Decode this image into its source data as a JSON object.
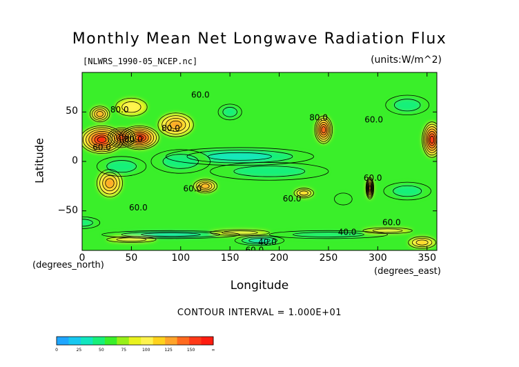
{
  "chart_data": {
    "type": "heatmap",
    "title": "Monthly Mean Net Longwave Radiation Flux",
    "subtitle": "[NLWRS_1990-05_NCEP.nc]",
    "units": "(units:W/m^2)",
    "xlabel": "Longitude",
    "ylabel": "Latitude",
    "xunits": "(degrees_east)",
    "yunits": "(degrees_north)",
    "xlim": [
      0,
      360
    ],
    "ylim": [
      -90,
      90
    ],
    "xticks": [
      0,
      50,
      100,
      150,
      200,
      250,
      300,
      350
    ],
    "yticks": [
      50,
      0,
      -50
    ],
    "xtick_labels": [
      "0",
      "50",
      "100",
      "150",
      "200",
      "250",
      "300",
      "350"
    ],
    "ytick_labels": [
      "50",
      "0",
      "−50"
    ],
    "contour_interval": "CONTOUR INTERVAL = 1.000E+01",
    "contour_labels": [
      {
        "lon": 38,
        "lat": 52,
        "text": "80.0"
      },
      {
        "lon": 120,
        "lat": 67,
        "text": "60.0"
      },
      {
        "lon": 90,
        "lat": 33,
        "text": "80.0"
      },
      {
        "lon": 20,
        "lat": 14,
        "text": "60.0"
      },
      {
        "lon": 52,
        "lat": 22,
        "text": "80.0"
      },
      {
        "lon": 240,
        "lat": 44,
        "text": "80.0"
      },
      {
        "lon": 296,
        "lat": 42,
        "text": "60.0"
      },
      {
        "lon": 295,
        "lat": -17,
        "text": "60.0"
      },
      {
        "lon": 112,
        "lat": -28,
        "text": "60.0"
      },
      {
        "lon": 213,
        "lat": -38,
        "text": "60.0"
      },
      {
        "lon": 57,
        "lat": -47,
        "text": "60.0"
      },
      {
        "lon": 269,
        "lat": -72,
        "text": "40.0"
      },
      {
        "lon": 314,
        "lat": -62,
        "text": "60.0"
      },
      {
        "lon": 188,
        "lat": -82,
        "text": "40.0"
      },
      {
        "lon": 175,
        "lat": -90,
        "text": "60.0"
      }
    ],
    "field_features": [
      {
        "lon": 20,
        "lat": 22,
        "w": 22,
        "h": 14,
        "value": 70
      },
      {
        "lon": 58,
        "lat": 24,
        "w": 20,
        "h": 12,
        "value": 72
      },
      {
        "lon": 40,
        "lat": 24,
        "w": 14,
        "h": 10,
        "value": 55
      },
      {
        "lon": 95,
        "lat": 37,
        "w": 18,
        "h": 12,
        "value": 38
      },
      {
        "lon": 18,
        "lat": 48,
        "w": 10,
        "h": 8,
        "value": 40
      },
      {
        "lon": 50,
        "lat": 55,
        "w": 16,
        "h": 9,
        "value": 22
      },
      {
        "lon": 245,
        "lat": 32,
        "w": 9,
        "h": 14,
        "value": 55
      },
      {
        "lon": 355,
        "lat": 22,
        "w": 10,
        "h": 18,
        "value": 70
      },
      {
        "lon": 28,
        "lat": -22,
        "w": 13,
        "h": 14,
        "value": 35
      },
      {
        "lon": 125,
        "lat": -25,
        "w": 12,
        "h": 7,
        "value": 40
      },
      {
        "lon": 225,
        "lat": -32,
        "w": 10,
        "h": 5,
        "value": 30
      },
      {
        "lon": 292,
        "lat": -27,
        "w": 4,
        "h": 11,
        "value": 75
      },
      {
        "lon": 345,
        "lat": -82,
        "w": 14,
        "h": 6,
        "value": 25
      },
      {
        "lon": 265,
        "lat": -38,
        "w": 9,
        "h": 6,
        "value": -10
      },
      {
        "lon": 160,
        "lat": 5,
        "w": 75,
        "h": 9,
        "value": -25
      },
      {
        "lon": 190,
        "lat": -10,
        "w": 60,
        "h": 9,
        "value": -20
      },
      {
        "lon": 100,
        "lat": 0,
        "w": 30,
        "h": 12,
        "value": -20
      },
      {
        "lon": 40,
        "lat": -5,
        "w": 25,
        "h": 10,
        "value": -18
      },
      {
        "lon": 330,
        "lat": -30,
        "w": 24,
        "h": 9,
        "value": -18
      },
      {
        "lon": 330,
        "lat": 57,
        "w": 22,
        "h": 10,
        "value": -18
      },
      {
        "lon": 150,
        "lat": 50,
        "w": 12,
        "h": 8,
        "value": -15
      },
      {
        "lon": 0,
        "lat": -62,
        "w": 18,
        "h": 6,
        "value": -15
      },
      {
        "lon": 90,
        "lat": -74,
        "w": 70,
        "h": 4,
        "value": -25
      },
      {
        "lon": 250,
        "lat": -74,
        "w": 60,
        "h": 4,
        "value": -22
      },
      {
        "lon": 180,
        "lat": -80,
        "w": 25,
        "h": 5,
        "value": -25
      },
      {
        "lon": 50,
        "lat": -79,
        "w": 25,
        "h": 3,
        "value": 20
      },
      {
        "lon": 160,
        "lat": -72,
        "w": 30,
        "h": 3,
        "value": 18
      },
      {
        "lon": 310,
        "lat": -70,
        "w": 25,
        "h": 3,
        "value": 18
      }
    ],
    "colorbar": {
      "levels": [
        "0",
        "25",
        "50",
        "75",
        "100",
        "125",
        "150",
        "∞"
      ],
      "colors": [
        "#1fa6ff",
        "#18c8f0",
        "#12e6bf",
        "#18f07a",
        "#3aef2a",
        "#98f018",
        "#e9f21e",
        "#fff34f",
        "#ffd21c",
        "#ffa42a",
        "#ff6a1e",
        "#ff3a18",
        "#ff1c10"
      ]
    },
    "grid": false
  }
}
